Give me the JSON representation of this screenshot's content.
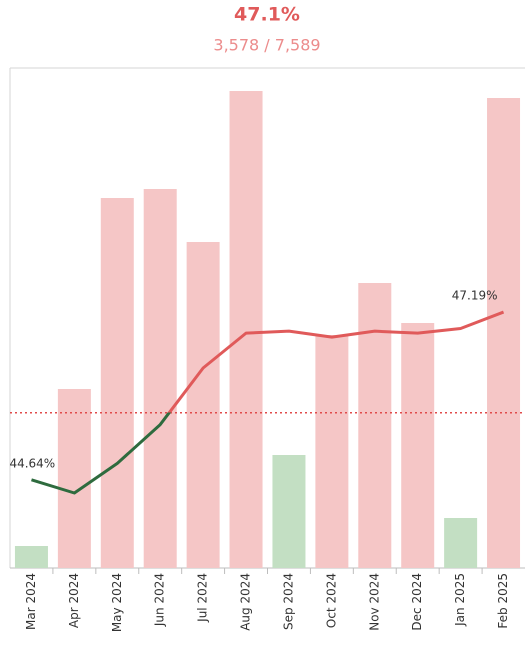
{
  "chart_data": {
    "type": "bar_line",
    "title": "47.1%",
    "subtitle": "3,578 / 7,589",
    "categories": [
      "Mar 2024",
      "Apr 2024",
      "May 2024",
      "Jun 2024",
      "Jul 2024",
      "Aug 2024",
      "Sep 2024",
      "Oct 2024",
      "Nov 2024",
      "Dec 2024",
      "Jan 2025",
      "Feb 2025"
    ],
    "ylim": [
      0,
      500
    ],
    "y2lim": [
      43.3,
      50.9
    ],
    "reference": 45.66,
    "series": [
      {
        "type": "bar",
        "colors": [
          "#c3dfc3",
          "#f5c6c6",
          "#f5c6c6",
          "#f5c6c6",
          "#f5c6c6",
          "#f5c6c6",
          "#c3dfc3",
          "#f5c6c6",
          "#f5c6c6",
          "#f5c6c6",
          "#c3dfc3",
          "#f5c6c6"
        ],
        "values": [
          22,
          179,
          370,
          379,
          326,
          477,
          113,
          233,
          285,
          245,
          50,
          470
        ]
      },
      {
        "type": "line",
        "axis": "y2",
        "color": "#e05a5a",
        "color_below": "#2e6b3e",
        "values": [
          44.64,
          44.44,
          44.89,
          45.48,
          46.34,
          46.87,
          46.9,
          46.81,
          46.9,
          46.87,
          46.94,
          47.19
        ],
        "value_labels": [
          "44.64%",
          null,
          null,
          null,
          null,
          null,
          null,
          null,
          null,
          null,
          null,
          "47.19%"
        ]
      }
    ]
  }
}
